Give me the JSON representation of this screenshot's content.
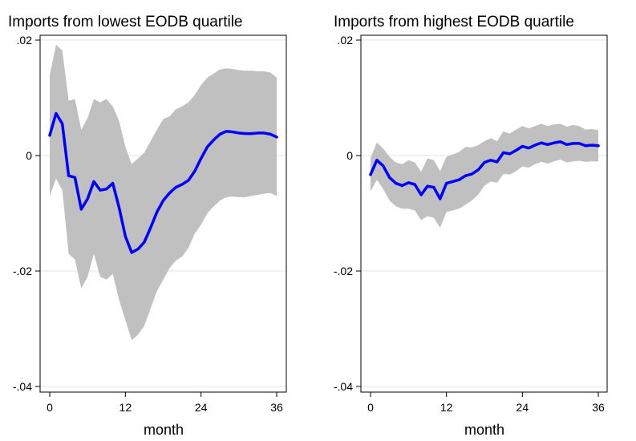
{
  "chart_data": [
    {
      "type": "line",
      "title": "Imports from lowest EODB quartile",
      "xlabel": "month",
      "ylabel": "",
      "xlim": [
        0,
        36
      ],
      "ylim": [
        -0.04,
        0.02
      ],
      "xticks": [
        0,
        12,
        24,
        36
      ],
      "xtick_labels": [
        "0",
        "12",
        "24",
        "36"
      ],
      "yticks": [
        -0.04,
        -0.02,
        0,
        0.02
      ],
      "ytick_labels": [
        "-.04",
        "-.02",
        "0",
        ".02"
      ],
      "grid": true,
      "colors": {
        "line": "#0000ff",
        "band": "#c0c0c0",
        "grid": "#e4e4e4"
      },
      "x": [
        0,
        1,
        2,
        3,
        4,
        5,
        6,
        7,
        8,
        9,
        10,
        11,
        12,
        13,
        14,
        15,
        16,
        17,
        18,
        19,
        20,
        21,
        22,
        23,
        24,
        25,
        26,
        27,
        28,
        29,
        30,
        31,
        32,
        33,
        34,
        35,
        36
      ],
      "series": [
        {
          "values": [
            0.0035,
            0.0073,
            0.0055,
            -0.0035,
            -0.0038,
            -0.0093,
            -0.0075,
            -0.0045,
            -0.006,
            -0.0058,
            -0.0048,
            -0.009,
            -0.014,
            -0.0168,
            -0.0162,
            -0.015,
            -0.0125,
            -0.0098,
            -0.0078,
            -0.0065,
            -0.0055,
            -0.005,
            -0.0043,
            -0.0027,
            -0.0005,
            0.0015,
            0.0027,
            0.0037,
            0.0042,
            0.0041,
            0.0039,
            0.0038,
            0.0038,
            0.0039,
            0.0039,
            0.0037,
            0.0032
          ]
        }
      ],
      "bands": [
        {
          "lower": [
            -0.007,
            -0.004,
            -0.006,
            -0.017,
            -0.018,
            -0.023,
            -0.021,
            -0.017,
            -0.021,
            -0.0215,
            -0.0205,
            -0.025,
            -0.0285,
            -0.032,
            -0.031,
            -0.0295,
            -0.0265,
            -0.0235,
            -0.0215,
            -0.0195,
            -0.0182,
            -0.0175,
            -0.016,
            -0.0135,
            -0.012,
            -0.01,
            -0.0088,
            -0.0078,
            -0.0072,
            -0.0071,
            -0.0072,
            -0.0072,
            -0.007,
            -0.0068,
            -0.0066,
            -0.0065,
            -0.007
          ],
          "upper": [
            0.014,
            0.0192,
            0.0182,
            0.0095,
            0.0098,
            0.0045,
            0.0065,
            0.0098,
            0.0092,
            0.0098,
            0.0085,
            0.006,
            0.0015,
            -0.0015,
            -0.0005,
            0.0005,
            0.0025,
            0.0045,
            0.0063,
            0.0068,
            0.008,
            0.0085,
            0.0092,
            0.0105,
            0.0122,
            0.0135,
            0.0142,
            0.0149,
            0.0151,
            0.015,
            0.0148,
            0.0147,
            0.0147,
            0.0146,
            0.0146,
            0.0144,
            0.0135
          ]
        }
      ]
    },
    {
      "type": "line",
      "title": "Imports from highest EODB quartile",
      "xlabel": "month",
      "ylabel": "",
      "xlim": [
        0,
        36
      ],
      "ylim": [
        -0.04,
        0.02
      ],
      "xticks": [
        0,
        12,
        24,
        36
      ],
      "xtick_labels": [
        "0",
        "12",
        "24",
        "36"
      ],
      "yticks": [
        -0.04,
        -0.02,
        0,
        0.02
      ],
      "ytick_labels": [
        "-.04",
        "-.02",
        "0",
        ".02"
      ],
      "grid": true,
      "colors": {
        "line": "#0000ff",
        "band": "#c0c0c0",
        "grid": "#e4e4e4"
      },
      "x": [
        0,
        1,
        2,
        3,
        4,
        5,
        6,
        7,
        8,
        9,
        10,
        11,
        12,
        13,
        14,
        15,
        16,
        17,
        18,
        19,
        20,
        21,
        22,
        23,
        24,
        25,
        26,
        27,
        28,
        29,
        30,
        31,
        32,
        33,
        34,
        35,
        36
      ],
      "series": [
        {
          "values": [
            -0.0033,
            -0.0008,
            -0.0018,
            -0.0038,
            -0.0048,
            -0.0052,
            -0.0047,
            -0.005,
            -0.0068,
            -0.0053,
            -0.0055,
            -0.0075,
            -0.0048,
            -0.0045,
            -0.0042,
            -0.0035,
            -0.0032,
            -0.0025,
            -0.0012,
            -0.0008,
            -0.0011,
            0.0005,
            0.0003,
            0.0009,
            0.0016,
            0.0013,
            0.0018,
            0.0022,
            0.0019,
            0.0022,
            0.0024,
            0.0019,
            0.0021,
            0.0021,
            0.0017,
            0.0018,
            0.0017
          ]
        }
      ],
      "bands": [
        {
          "lower": [
            -0.0062,
            -0.0042,
            -0.0058,
            -0.0078,
            -0.0088,
            -0.0092,
            -0.0092,
            -0.0095,
            -0.0112,
            -0.0105,
            -0.0108,
            -0.0125,
            -0.0098,
            -0.0095,
            -0.0092,
            -0.0085,
            -0.0078,
            -0.0068,
            -0.0052,
            -0.0045,
            -0.0047,
            -0.0032,
            -0.0033,
            -0.0027,
            -0.0019,
            -0.0021,
            -0.0015,
            -0.0011,
            -0.0014,
            -0.001,
            -0.0007,
            -0.0012,
            -0.001,
            -0.0009,
            -0.0011,
            -0.001,
            -0.001
          ],
          "upper": [
            -0.0004,
            0.0023,
            0.0012,
            -0.0002,
            -0.0012,
            -0.0015,
            -0.0008,
            -0.0012,
            -0.0028,
            -0.0005,
            -0.0008,
            -0.0027,
            -0.0002,
            0.0002,
            0.0006,
            0.0015,
            0.0014,
            0.0018,
            0.0025,
            0.003,
            0.0025,
            0.0042,
            0.0038,
            0.0045,
            0.0051,
            0.0047,
            0.0051,
            0.0055,
            0.0051,
            0.0054,
            0.0055,
            0.005,
            0.0053,
            0.0051,
            0.0045,
            0.0046,
            0.0044
          ]
        }
      ]
    }
  ]
}
